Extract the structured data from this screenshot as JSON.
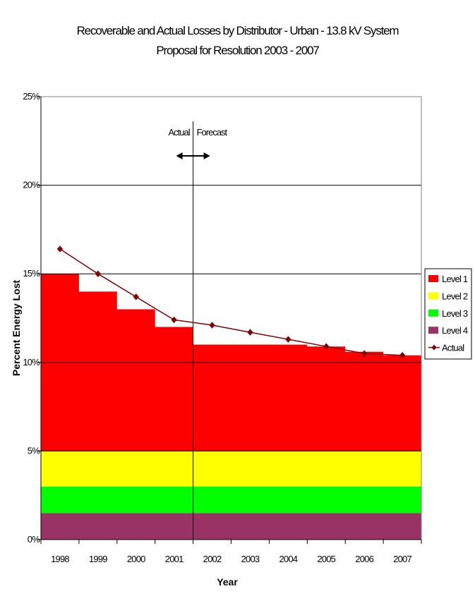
{
  "chart_data": {
    "type": "area",
    "title": "Recoverable and Actual Losses by Distributor - Urban - 13.8 kV System",
    "subtitle": "Proposal for Resolution 2003 - 2007",
    "xlabel": "Year",
    "ylabel": "Percent Energy Lost",
    "categories": [
      "1998",
      "1999",
      "2000",
      "2001",
      "2002",
      "2003",
      "2004",
      "2005",
      "2006",
      "2007"
    ],
    "ylim": [
      0,
      25
    ],
    "y_ticks": [
      "0%",
      "5%",
      "10%",
      "15%",
      "20%",
      "25%"
    ],
    "grid": true,
    "legend_position": "right",
    "stack_bands": [
      {
        "name": "Level 4",
        "color": "#993366",
        "lower": 0,
        "upper": 1.5
      },
      {
        "name": "Level 3",
        "color": "#00ff00",
        "lower": 1.5,
        "upper": 3
      },
      {
        "name": "Level 2",
        "color": "#ffff00",
        "lower": 3,
        "upper": 5
      }
    ],
    "series": [
      {
        "name": "Level 1",
        "color": "#ff0000",
        "type": "step-area",
        "values": [
          15.0,
          14.0,
          13.0,
          12.0,
          11.0,
          11.0,
          11.0,
          10.9,
          10.6,
          10.4
        ]
      },
      {
        "name": "Actual",
        "color": "#800000",
        "type": "line",
        "values": [
          16.4,
          15.0,
          13.7,
          12.4,
          12.1,
          11.7,
          11.3,
          10.9,
          10.5,
          10.4
        ]
      }
    ],
    "legend": [
      "Level 1",
      "Level 2",
      "Level 3",
      "Level 4",
      "Actual"
    ],
    "annotation": {
      "left_label": "Actual",
      "right_label": "Forecast",
      "divider_after": "2001"
    }
  }
}
